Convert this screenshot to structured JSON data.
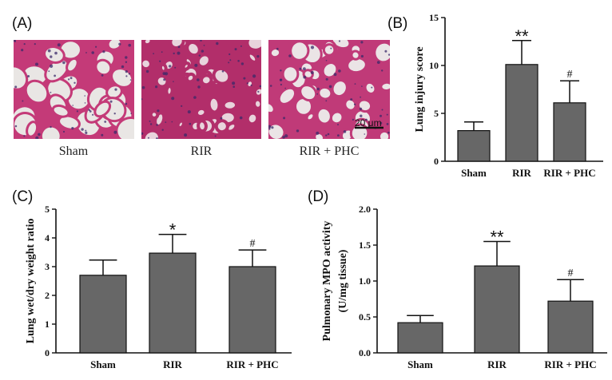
{
  "panel_a": {
    "letter": "(A)",
    "images": [
      {
        "caption": "Sham",
        "icon": "lung-histology-sham-image",
        "tissue_color": "#c43a78",
        "background": "#e9e6e4"
      },
      {
        "caption": "RIR",
        "icon": "lung-histology-rir-image",
        "tissue_color": "#b22e6a",
        "background": "#e8d4dc"
      },
      {
        "caption": "RIR + PHC",
        "icon": "lung-histology-rir-phc-image",
        "tissue_color": "#c03a78",
        "background": "#ebe4e6"
      }
    ],
    "scale_bar_label": "20 μm"
  },
  "chart_data": [
    {
      "panel": "(B)",
      "type": "bar",
      "categories": [
        "Sham",
        "RIR",
        "RIR + PHC"
      ],
      "values": [
        3.2,
        10.1,
        6.1
      ],
      "errors": [
        0.9,
        2.5,
        2.3
      ],
      "significance": [
        "",
        "**",
        "#"
      ],
      "ylabel": "Lung injury score",
      "xlabel": "",
      "ylim": [
        0,
        15
      ],
      "yticks": [
        "0",
        "5",
        "10",
        "15"
      ],
      "bar_color": "#676767",
      "grid": false
    },
    {
      "panel": "(C)",
      "type": "bar",
      "categories": [
        "Sham",
        "RIR",
        "RIR + PHC"
      ],
      "values": [
        2.7,
        3.47,
        3.0
      ],
      "errors": [
        0.53,
        0.65,
        0.58
      ],
      "significance": [
        "",
        "*",
        "#"
      ],
      "ylabel": "Lung wet/dry weight ratio",
      "xlabel": "",
      "ylim": [
        0,
        5
      ],
      "yticks": [
        "0",
        "1",
        "2",
        "3",
        "4",
        "5"
      ],
      "bar_color": "#676767",
      "grid": false
    },
    {
      "panel": "(D)",
      "type": "bar",
      "categories": [
        "Sham",
        "RIR",
        "RIR + PHC"
      ],
      "values": [
        0.42,
        1.21,
        0.72
      ],
      "errors": [
        0.1,
        0.34,
        0.3
      ],
      "significance": [
        "",
        "**",
        "#"
      ],
      "ylabel": [
        "Pulmonary MPO activity",
        "(U/mg tissue)"
      ],
      "xlabel": "",
      "ylim": [
        0,
        2.0
      ],
      "yticks": [
        "0.0",
        "0.5",
        "1.0",
        "1.5",
        "2.0"
      ],
      "bar_color": "#676767",
      "grid": false
    }
  ]
}
